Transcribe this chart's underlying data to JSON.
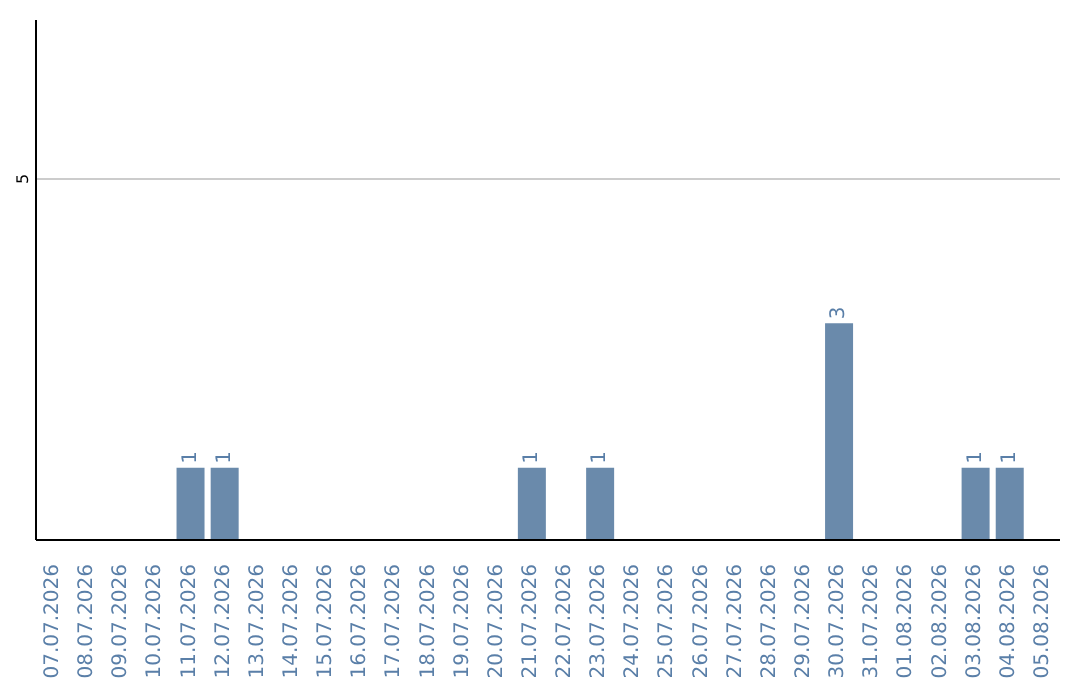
{
  "chart_data": {
    "type": "bar",
    "categories": [
      "07.07.2026",
      "08.07.2026",
      "09.07.2026",
      "10.07.2026",
      "11.07.2026",
      "12.07.2026",
      "13.07.2026",
      "14.07.2026",
      "15.07.2026",
      "16.07.2026",
      "17.07.2026",
      "18.07.2026",
      "19.07.2026",
      "20.07.2026",
      "21.07.2026",
      "22.07.2026",
      "23.07.2026",
      "24.07.2026",
      "25.07.2026",
      "26.07.2026",
      "27.07.2026",
      "28.07.2026",
      "29.07.2026",
      "30.07.2026",
      "31.07.2026",
      "01.08.2026",
      "02.08.2026",
      "03.08.2026",
      "04.08.2026",
      "05.08.2026"
    ],
    "values": [
      0,
      0,
      0,
      0,
      1,
      1,
      0,
      0,
      0,
      0,
      0,
      0,
      0,
      0,
      1,
      0,
      1,
      0,
      0,
      0,
      0,
      0,
      0,
      3,
      0,
      0,
      0,
      1,
      1,
      0
    ],
    "value_labels": [
      null,
      null,
      null,
      null,
      "1",
      "1",
      null,
      null,
      null,
      null,
      null,
      null,
      null,
      null,
      "1",
      null,
      "1",
      null,
      null,
      null,
      null,
      null,
      null,
      "3",
      null,
      null,
      null,
      "1",
      "1",
      null
    ],
    "color": "#6a8aab",
    "ylim": [
      0,
      7.2
    ],
    "yticks": [
      5
    ],
    "grid": "y",
    "legend": false
  }
}
